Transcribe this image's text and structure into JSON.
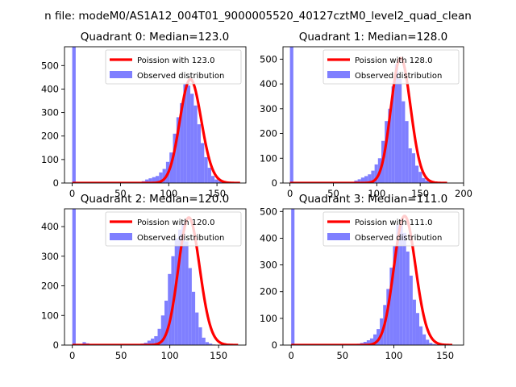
{
  "figure": {
    "suptitle": "n file: modeM0/AS1A12_004T01_9000005520_40127cztM0_level2_quad_clean"
  },
  "colors": {
    "fit": "#ff0000",
    "hist": "#7f7fff",
    "axis": "#000000"
  },
  "chart_data": [
    {
      "type": "bar",
      "title": "Quadrant 0: Median=123.0",
      "median": 123.0,
      "xlim": [
        -8,
        180
      ],
      "ylim": [
        0,
        580
      ],
      "xticks": [
        0,
        50,
        100,
        150
      ],
      "yticks": [
        0,
        100,
        200,
        300,
        400,
        500
      ],
      "legend_position": "top-right",
      "series": [
        {
          "name": "Poission with 123.0",
          "kind": "line",
          "lambda": 123.0
        },
        {
          "name": "Observed distribution",
          "kind": "hist",
          "bin_width": 3.6,
          "bin_start": 0,
          "values": [
            580,
            0,
            0,
            0,
            0,
            0,
            0,
            0,
            0,
            0,
            0,
            0,
            0,
            0,
            0,
            0,
            0,
            0,
            0,
            5,
            8,
            15,
            20,
            25,
            30,
            45,
            60,
            90,
            130,
            210,
            280,
            340,
            420,
            415,
            380,
            330,
            250,
            170,
            110,
            65,
            30,
            15,
            8,
            4,
            2,
            1,
            0,
            0,
            0,
            0
          ]
        }
      ]
    },
    {
      "type": "bar",
      "title": "Quadrant 1: Median=128.0",
      "median": 128.0,
      "xlim": [
        -8,
        200
      ],
      "ylim": [
        0,
        550
      ],
      "xticks": [
        0,
        50,
        100,
        150,
        200
      ],
      "yticks": [
        0,
        100,
        200,
        300,
        400,
        500
      ],
      "legend_position": "top-right",
      "series": [
        {
          "name": "Poission with 128.0",
          "kind": "line",
          "lambda": 128.0
        },
        {
          "name": "Observed distribution",
          "kind": "hist",
          "bin_width": 3.9,
          "bin_start": 0,
          "values": [
            550,
            0,
            0,
            0,
            0,
            0,
            0,
            0,
            0,
            0,
            0,
            0,
            0,
            0,
            0,
            0,
            0,
            0,
            5,
            10,
            15,
            22,
            28,
            35,
            50,
            75,
            100,
            170,
            250,
            300,
            390,
            480,
            420,
            330,
            250,
            140,
            120,
            70,
            45,
            20,
            10,
            5,
            2,
            1,
            0,
            0,
            0,
            0,
            0,
            0
          ]
        }
      ]
    },
    {
      "type": "bar",
      "title": "Quadrant 2: Median=120.0",
      "median": 120.0,
      "xlim": [
        -8,
        178
      ],
      "ylim": [
        0,
        460
      ],
      "xticks": [
        0,
        50,
        100,
        150
      ],
      "yticks": [
        0,
        100,
        200,
        300,
        400
      ],
      "legend_position": "top-right",
      "series": [
        {
          "name": "Poission with 120.0",
          "kind": "line",
          "lambda": 120.0
        },
        {
          "name": "Observed distribution",
          "kind": "hist",
          "bin_width": 3.5,
          "bin_start": 0,
          "values": [
            460,
            0,
            0,
            10,
            6,
            3,
            0,
            0,
            0,
            0,
            0,
            0,
            0,
            0,
            0,
            0,
            0,
            0,
            0,
            0,
            5,
            8,
            15,
            22,
            30,
            55,
            100,
            150,
            240,
            300,
            360,
            390,
            410,
            350,
            260,
            180,
            110,
            60,
            25,
            10,
            5,
            2,
            0,
            0,
            0,
            0,
            0,
            0,
            0,
            0
          ]
        }
      ]
    },
    {
      "type": "bar",
      "title": "Quadrant 3: Median=111.0",
      "median": 111.0,
      "xlim": [
        -8,
        168
      ],
      "ylim": [
        0,
        510
      ],
      "xticks": [
        0,
        50,
        100,
        150
      ],
      "yticks": [
        0,
        100,
        200,
        300,
        400,
        500
      ],
      "legend_position": "top-right",
      "series": [
        {
          "name": "Poission with 111.0",
          "kind": "line",
          "lambda": 111.0
        },
        {
          "name": "Observed distribution",
          "kind": "hist",
          "bin_width": 3.2,
          "bin_start": 0,
          "values": [
            510,
            0,
            0,
            0,
            0,
            0,
            0,
            0,
            0,
            0,
            0,
            0,
            0,
            0,
            0,
            0,
            0,
            0,
            0,
            0,
            5,
            8,
            12,
            18,
            25,
            40,
            60,
            100,
            150,
            210,
            290,
            370,
            450,
            460,
            420,
            350,
            260,
            170,
            120,
            70,
            40,
            20,
            8,
            4,
            2,
            1,
            0,
            0,
            0,
            0
          ]
        }
      ]
    }
  ]
}
